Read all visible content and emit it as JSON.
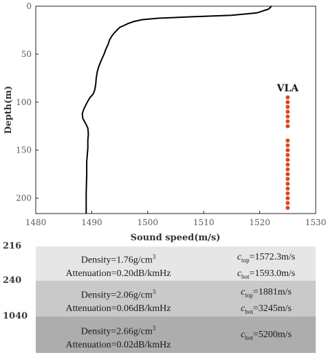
{
  "chart_data": {
    "type": "line",
    "xlabel": "Sound speed(m/s)",
    "ylabel": "Depth(m)",
    "xlim": [
      1480,
      1530
    ],
    "ylim": [
      0,
      216
    ],
    "y_reversed": true,
    "x_ticks": [
      1480,
      1490,
      1500,
      1510,
      1520,
      1530
    ],
    "y_ticks": [
      0,
      50,
      100,
      150,
      200
    ],
    "series": [
      {
        "line_color": "#000000",
        "points": [
          [
            1522.1,
            0
          ],
          [
            1521.6,
            3
          ],
          [
            1519.5,
            7
          ],
          [
            1515,
            9.5
          ],
          [
            1508,
            11
          ],
          [
            1502,
            12.5
          ],
          [
            1499,
            14
          ],
          [
            1497.5,
            16
          ],
          [
            1496.5,
            18
          ],
          [
            1495.8,
            20
          ],
          [
            1495,
            22
          ],
          [
            1494.5,
            25
          ],
          [
            1494,
            28
          ],
          [
            1493.6,
            31
          ],
          [
            1493.2,
            35
          ],
          [
            1492.9,
            40
          ],
          [
            1492.5,
            45
          ],
          [
            1492.2,
            50
          ],
          [
            1491.8,
            55
          ],
          [
            1491.3,
            62
          ],
          [
            1491,
            68
          ],
          [
            1490.8,
            75
          ],
          [
            1490.7,
            82
          ],
          [
            1490.5,
            88
          ],
          [
            1490.2,
            92
          ],
          [
            1489.7,
            95
          ],
          [
            1489.2,
            100
          ],
          [
            1488.6,
            107
          ],
          [
            1488.3,
            112
          ],
          [
            1488.4,
            117
          ],
          [
            1488.9,
            122
          ],
          [
            1489.3,
            127
          ],
          [
            1489.4,
            133
          ],
          [
            1489.3,
            140
          ],
          [
            1489.3,
            148
          ],
          [
            1489.2,
            155
          ],
          [
            1489.1,
            162
          ],
          [
            1489.1,
            175
          ],
          [
            1489.0,
            195
          ],
          [
            1489.0,
            216
          ]
        ]
      }
    ],
    "vla": {
      "label": "VLA",
      "x": 1525,
      "color": "#d94a1e",
      "depths": [
        95,
        100,
        105,
        110,
        115,
        120,
        125,
        140,
        145,
        150,
        155,
        160,
        165,
        170,
        175,
        180,
        185,
        190,
        195,
        200,
        205,
        210
      ]
    }
  },
  "layers": [
    {
      "top_depth": "216",
      "density": "Density=1.76g/cm",
      "attenuation": "Attenuation=0.20dB/kmHz",
      "c_top": "=1572.3m/s",
      "c_bot": "=1593.0m/s"
    },
    {
      "top_depth": "240",
      "density": "Density=2.06g/cm",
      "attenuation": "Attenuation=0.06dB/kmHz",
      "c_top": "=1881m/s",
      "c_bot": "=3245m/s"
    },
    {
      "top_depth": "1040",
      "density": "Density=2.66g/cm",
      "attenuation": "Attenuation=0.02dB/kmHz",
      "c_bot": "=5200m/s"
    }
  ],
  "symbols": {
    "c": "c",
    "top": "top",
    "bot": "bot",
    "cube": "3"
  }
}
